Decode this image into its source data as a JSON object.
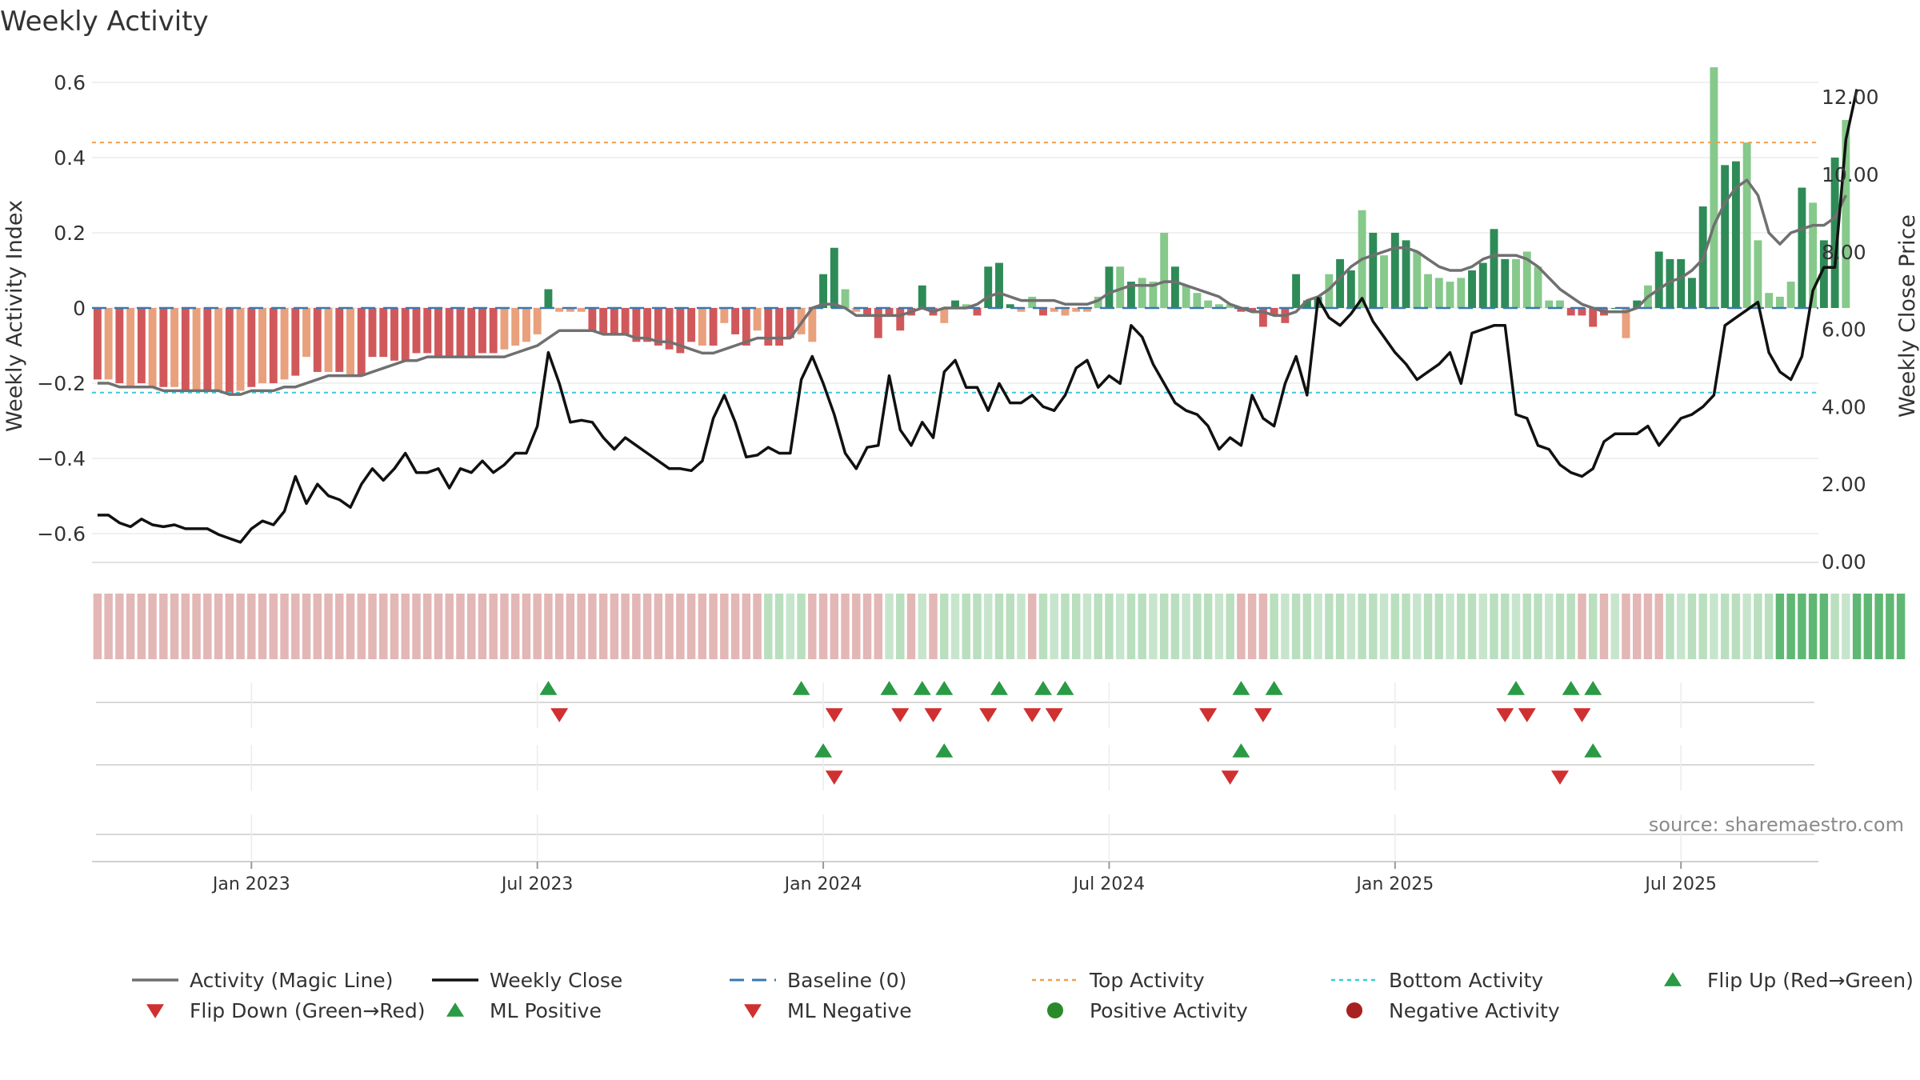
{
  "title": "Weekly Activity",
  "source_note": "source: sharemaestro.com",
  "colors": {
    "strong_green": "#2e8b57",
    "light_green": "#86c98b",
    "strong_red": "#d0585b",
    "light_red": "#e9a07c",
    "magic_line": "#707070",
    "close_line": "#111111",
    "baseline": "#3a78b0",
    "top_line": "#f0a050",
    "bottom_line": "#3cc8e0",
    "flip_up": "#2a9a45",
    "flip_down": "#d03030",
    "positive_dot": "#2a8a2a",
    "negative_dot": "#a82020"
  },
  "chart_data": {
    "type": "bar",
    "title": "Weekly Activity",
    "ylabel": "Weekly Activity Index",
    "y2label": "Weekly Close Price",
    "ylim": [
      -0.67,
      0.67
    ],
    "y2lim": [
      0,
      12.6
    ],
    "yticks": [
      "0.6",
      "0.4",
      "0.2",
      "0",
      "−0.2",
      "−0.4",
      "−0.6"
    ],
    "yticks_values": [
      0.6,
      0.4,
      0.2,
      0,
      -0.2,
      -0.4,
      -0.6
    ],
    "y2ticks": [
      "12.00",
      "10.00",
      "8.00",
      "6.00",
      "4.00",
      "2.00",
      "0.00"
    ],
    "y2ticks_values": [
      12,
      10,
      8,
      6,
      4,
      2,
      0
    ],
    "x_tick_labels": [
      "Jan 2023",
      "Jul 2023",
      "Jan 2024",
      "Jul 2024",
      "Jan 2025",
      "Jul 2025"
    ],
    "x_tick_weeks": [
      14.5,
      40.5,
      66.5,
      92.5,
      118.5,
      144.5
    ],
    "n_weeks": 157,
    "top_activity": 0.44,
    "bottom_activity": -0.225,
    "activity": [
      -0.19,
      -0.19,
      -0.2,
      -0.21,
      -0.2,
      -0.21,
      -0.21,
      -0.21,
      -0.22,
      -0.22,
      -0.22,
      -0.22,
      -0.23,
      -0.22,
      -0.21,
      -0.2,
      -0.2,
      -0.19,
      -0.18,
      -0.13,
      -0.17,
      -0.17,
      -0.17,
      -0.18,
      -0.18,
      -0.13,
      -0.13,
      -0.14,
      -0.14,
      -0.12,
      -0.12,
      -0.13,
      -0.13,
      -0.13,
      -0.13,
      -0.12,
      -0.12,
      -0.11,
      -0.1,
      -0.09,
      -0.07,
      0.05,
      -0.01,
      -0.01,
      -0.01,
      -0.06,
      -0.07,
      -0.07,
      -0.07,
      -0.09,
      -0.09,
      -0.1,
      -0.11,
      -0.12,
      -0.09,
      -0.1,
      -0.1,
      -0.04,
      -0.07,
      -0.1,
      -0.06,
      -0.1,
      -0.1,
      -0.08,
      -0.07,
      -0.09,
      0.09,
      0.16,
      0.05,
      -0.01,
      -0.02,
      -0.08,
      -0.02,
      -0.06,
      -0.02,
      0.06,
      -0.02,
      -0.04,
      0.02,
      0.01,
      -0.02,
      0.11,
      0.12,
      0.01,
      -0.01,
      0.03,
      -0.02,
      -0.01,
      -0.02,
      -0.01,
      -0.01,
      0.03,
      0.11,
      0.11,
      0.07,
      0.08,
      0.07,
      0.2,
      0.11,
      0.06,
      0.04,
      0.02,
      0.01,
      0.01,
      -0.01,
      -0.01,
      -0.05,
      -0.02,
      -0.04,
      0.09,
      0.02,
      0.03,
      0.09,
      0.13,
      0.1,
      0.26,
      0.2,
      0.14,
      0.2,
      0.18,
      0.15,
      0.09,
      0.08,
      0.07,
      0.08,
      0.1,
      0.12,
      0.21,
      0.13,
      0.13,
      0.15,
      0.11,
      0.02,
      0.02,
      -0.02,
      -0.02,
      -0.05,
      -0.02,
      0.0,
      -0.08,
      0.02,
      0.06,
      0.15,
      0.13,
      0.13,
      0.08,
      0.27,
      0.64,
      0.38,
      0.39,
      0.44,
      0.18,
      0.04,
      0.03,
      0.07,
      0.32,
      0.28,
      0.18,
      0.4,
      0.5
    ],
    "activity_shade": [
      "s",
      "l",
      "s",
      "l",
      "s",
      "l",
      "s",
      "l",
      "s",
      "l",
      "s",
      "l",
      "s",
      "l",
      "s",
      "l",
      "s",
      "l",
      "s",
      "l",
      "s",
      "l",
      "s",
      "l",
      "s",
      "s",
      "s",
      "s",
      "s",
      "s",
      "s",
      "s",
      "s",
      "s",
      "s",
      "s",
      "s",
      "l",
      "l",
      "l",
      "l",
      "s",
      "l",
      "l",
      "l",
      "s",
      "s",
      "s",
      "s",
      "s",
      "s",
      "s",
      "s",
      "s",
      "s",
      "l",
      "s",
      "l",
      "s",
      "s",
      "l",
      "s",
      "s",
      "s",
      "l",
      "l",
      "s",
      "s",
      "l",
      "l",
      "s",
      "s",
      "s",
      "s",
      "s",
      "s",
      "s",
      "l",
      "s",
      "l",
      "s",
      "s",
      "s",
      "s",
      "l",
      "l",
      "s",
      "l",
      "l",
      "l",
      "l",
      "l",
      "s",
      "l",
      "s",
      "l",
      "l",
      "l",
      "s",
      "l",
      "l",
      "l",
      "l",
      "l",
      "s",
      "s",
      "s",
      "s",
      "s",
      "s",
      "s",
      "s",
      "l",
      "s",
      "s",
      "l",
      "s",
      "l",
      "s",
      "s",
      "l",
      "l",
      "l",
      "l",
      "l",
      "s",
      "s",
      "s",
      "s",
      "l",
      "l",
      "l",
      "l",
      "l",
      "s",
      "s",
      "s",
      "s",
      "s",
      "l",
      "s",
      "l",
      "s",
      "s",
      "s",
      "s",
      "s",
      "l",
      "s",
      "s",
      "l",
      "l",
      "l",
      "l",
      "l",
      "s",
      "l",
      "s",
      "s",
      "l",
      "l"
    ],
    "magic_line": [
      -0.2,
      -0.2,
      -0.21,
      -0.21,
      -0.21,
      -0.21,
      -0.22,
      -0.22,
      -0.22,
      -0.22,
      -0.22,
      -0.22,
      -0.23,
      -0.23,
      -0.22,
      -0.22,
      -0.22,
      -0.21,
      -0.21,
      -0.2,
      -0.19,
      -0.18,
      -0.18,
      -0.18,
      -0.18,
      -0.17,
      -0.16,
      -0.15,
      -0.14,
      -0.14,
      -0.13,
      -0.13,
      -0.13,
      -0.13,
      -0.13,
      -0.13,
      -0.13,
      -0.13,
      -0.12,
      -0.11,
      -0.1,
      -0.08,
      -0.06,
      -0.06,
      -0.06,
      -0.06,
      -0.07,
      -0.07,
      -0.07,
      -0.08,
      -0.08,
      -0.09,
      -0.09,
      -0.1,
      -0.11,
      -0.12,
      -0.12,
      -0.11,
      -0.1,
      -0.09,
      -0.08,
      -0.08,
      -0.08,
      -0.08,
      -0.04,
      0.0,
      0.01,
      0.01,
      0.0,
      -0.02,
      -0.02,
      -0.02,
      -0.02,
      -0.02,
      -0.01,
      0.0,
      -0.01,
      0.0,
      0.0,
      0.0,
      0.01,
      0.03,
      0.04,
      0.03,
      0.02,
      0.02,
      0.02,
      0.02,
      0.01,
      0.01,
      0.01,
      0.02,
      0.04,
      0.05,
      0.06,
      0.06,
      0.06,
      0.07,
      0.07,
      0.06,
      0.05,
      0.04,
      0.03,
      0.01,
      0.0,
      -0.01,
      -0.01,
      -0.02,
      -0.02,
      -0.01,
      0.02,
      0.03,
      0.05,
      0.08,
      0.11,
      0.13,
      0.14,
      0.15,
      0.16,
      0.16,
      0.15,
      0.13,
      0.11,
      0.1,
      0.1,
      0.11,
      0.13,
      0.14,
      0.14,
      0.14,
      0.13,
      0.11,
      0.08,
      0.05,
      0.03,
      0.01,
      -0.0,
      -0.01,
      -0.01,
      -0.01,
      0.0,
      0.03,
      0.05,
      0.07,
      0.08,
      0.1,
      0.13,
      0.22,
      0.28,
      0.32,
      0.34,
      0.3,
      0.2,
      0.17,
      0.2,
      0.21,
      0.22,
      0.22,
      0.24,
      0.3
    ],
    "weekly_close": [
      1.2,
      1.2,
      1.0,
      0.9,
      1.1,
      0.95,
      0.9,
      0.95,
      0.85,
      0.85,
      0.85,
      0.7,
      0.6,
      0.5,
      0.85,
      1.05,
      0.95,
      1.3,
      2.2,
      1.5,
      2.0,
      1.7,
      1.6,
      1.4,
      2.0,
      2.4,
      2.1,
      2.4,
      2.8,
      2.3,
      2.3,
      2.4,
      1.9,
      2.4,
      2.3,
      2.6,
      2.3,
      2.5,
      2.8,
      2.8,
      3.5,
      5.4,
      4.6,
      3.6,
      3.65,
      3.6,
      3.2,
      2.9,
      3.2,
      3.0,
      2.8,
      2.6,
      2.4,
      2.4,
      2.35,
      2.6,
      3.7,
      4.3,
      3.6,
      2.7,
      2.75,
      2.95,
      2.8,
      2.8,
      4.7,
      5.3,
      4.6,
      3.8,
      2.8,
      2.4,
      2.95,
      3.0,
      4.8,
      3.4,
      3.0,
      3.6,
      3.2,
      4.9,
      5.2,
      4.5,
      4.5,
      3.9,
      4.6,
      4.1,
      4.1,
      4.3,
      4.0,
      3.9,
      4.3,
      5.0,
      5.2,
      4.5,
      4.8,
      4.6,
      6.1,
      5.8,
      5.1,
      4.6,
      4.1,
      3.9,
      3.8,
      3.5,
      2.9,
      3.2,
      3.0,
      4.3,
      3.7,
      3.5,
      4.6,
      5.3,
      4.3,
      6.8,
      6.3,
      6.1,
      6.4,
      6.8,
      6.2,
      5.8,
      5.4,
      5.1,
      4.7,
      4.9,
      5.1,
      5.4,
      4.6,
      5.9,
      6.0,
      6.1,
      6.1,
      3.8,
      3.7,
      3.0,
      2.9,
      2.5,
      2.3,
      2.2,
      2.4,
      3.1,
      3.3,
      3.3,
      3.3,
      3.5,
      3.0,
      3.35,
      3.7,
      3.8,
      4.0,
      4.3,
      6.1,
      6.3,
      6.5,
      6.7,
      5.4,
      4.9,
      4.7,
      5.3,
      7.0,
      7.6,
      7.6,
      10.9,
      12.2
    ],
    "bottom_strip_color": [
      "r",
      "r",
      "r",
      "r",
      "r",
      "r",
      "r",
      "r",
      "r",
      "r",
      "r",
      "r",
      "r",
      "r",
      "r",
      "r",
      "r",
      "r",
      "r",
      "r",
      "r",
      "r",
      "r",
      "r",
      "r",
      "r",
      "r",
      "r",
      "r",
      "r",
      "r",
      "r",
      "r",
      "r",
      "r",
      "r",
      "r",
      "r",
      "r",
      "r",
      "r",
      "r",
      "r",
      "r",
      "r",
      "r",
      "r",
      "r",
      "r",
      "r",
      "r",
      "r",
      "r",
      "r",
      "r",
      "r",
      "r",
      "r",
      "r",
      "r",
      "r",
      "g",
      "g",
      "g",
      "g",
      "r",
      "r",
      "r",
      "r",
      "r",
      "r",
      "r",
      "g",
      "g",
      "r",
      "g",
      "r",
      "g",
      "g",
      "g",
      "g",
      "g",
      "g",
      "g",
      "g",
      "r",
      "g",
      "g",
      "g",
      "g",
      "g",
      "g",
      "g",
      "g",
      "g",
      "g",
      "g",
      "g",
      "g",
      "g",
      "g",
      "g",
      "g",
      "g",
      "r",
      "r",
      "r",
      "g",
      "g",
      "g",
      "g",
      "g",
      "g",
      "g",
      "g",
      "g",
      "g",
      "g",
      "g",
      "g",
      "g",
      "g",
      "g",
      "g",
      "g",
      "g",
      "g",
      "g",
      "g",
      "g",
      "g",
      "g",
      "g",
      "g",
      "g",
      "r",
      "g",
      "r",
      "g",
      "r",
      "r",
      "r",
      "r",
      "g",
      "g",
      "g",
      "g",
      "g",
      "g",
      "g",
      "g",
      "g",
      "g",
      "G",
      "G",
      "G",
      "G",
      "G",
      "g",
      "g",
      "G",
      "G",
      "G",
      "G",
      "G"
    ],
    "flip_up_weeks": [
      41,
      64,
      72,
      75,
      77,
      82,
      86,
      88,
      104,
      107,
      129,
      134,
      136
    ],
    "flip_down_weeks": [
      42,
      67,
      73,
      76,
      81,
      85,
      87,
      101,
      106,
      128,
      130,
      135
    ],
    "ml_positive_weeks": [
      66,
      77,
      104,
      136
    ],
    "ml_negative_weeks": [
      67,
      103,
      133
    ]
  },
  "legend": {
    "items": [
      {
        "label": "Activity (Magic Line)",
        "symbol": "line-gray"
      },
      {
        "label": "Weekly Close",
        "symbol": "line-black"
      },
      {
        "label": "Baseline (0)",
        "symbol": "dash-blue"
      },
      {
        "label": "Top Activity",
        "symbol": "dot-orange"
      },
      {
        "label": "Bottom Activity",
        "symbol": "dot-cyan"
      },
      {
        "label": "Flip Up (Red→Green)",
        "symbol": "tri-up-green"
      },
      {
        "label": "Flip Down (Green→Red)",
        "symbol": "tri-down-red"
      },
      {
        "label": "ML Positive",
        "symbol": "tri-up-green"
      },
      {
        "label": "ML Negative",
        "symbol": "tri-down-red"
      },
      {
        "label": "Positive Activity",
        "symbol": "circle-green"
      },
      {
        "label": "Negative Activity",
        "symbol": "circle-red"
      }
    ]
  }
}
